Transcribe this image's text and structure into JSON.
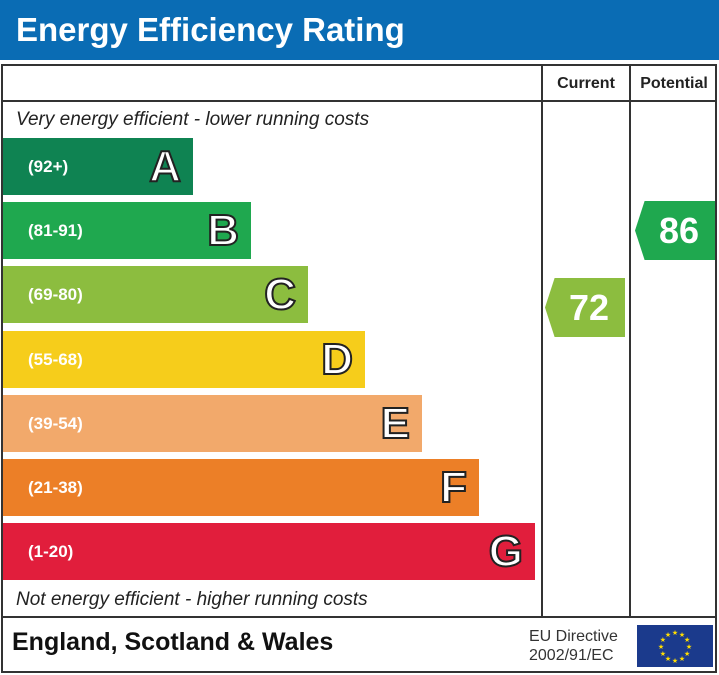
{
  "title": "Energy Efficiency Rating",
  "chart_data": {
    "type": "bar",
    "title": "Energy Efficiency Rating",
    "columns": [
      "Current",
      "Potential"
    ],
    "top_note": "Very energy efficient - lower running costs",
    "bottom_note": "Not energy efficient - higher running costs",
    "bands": [
      {
        "letter": "A",
        "range": "(92+)",
        "color": "#0f8352"
      },
      {
        "letter": "B",
        "range": "(81-91)",
        "color": "#1fa84f"
      },
      {
        "letter": "C",
        "range": "(69-80)",
        "color": "#8cbd3f"
      },
      {
        "letter": "D",
        "range": "(55-68)",
        "color": "#f6cd1b"
      },
      {
        "letter": "E",
        "range": "(39-54)",
        "color": "#f2a96b"
      },
      {
        "letter": "F",
        "range": "(21-38)",
        "color": "#ec7f27"
      },
      {
        "letter": "G",
        "range": "(1-20)",
        "color": "#e11e3c"
      }
    ],
    "current": {
      "value": "72",
      "band": "C",
      "color": "#8cbd3f"
    },
    "potential": {
      "value": "86",
      "band": "B",
      "color": "#1fa84f"
    }
  },
  "footer": {
    "region": "England, Scotland & Wales",
    "directive_line1": "EU Directive",
    "directive_line2": "2002/91/EC"
  },
  "colors": {
    "header": "#0a6cb4"
  }
}
